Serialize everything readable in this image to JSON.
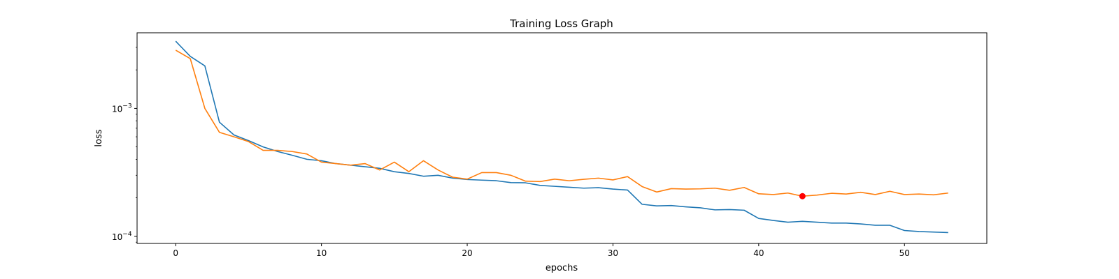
{
  "chart_data": {
    "type": "line",
    "title": "Training Loss Graph",
    "xlabel": "epochs",
    "ylabel": "loss",
    "yscale": "log",
    "xlim": [
      -2.65,
      55.65
    ],
    "ylim": [
      8.8e-05,
      0.0039
    ],
    "xticks": [
      0,
      10,
      20,
      30,
      40,
      50
    ],
    "yticks": [
      {
        "value": 0.001,
        "base": "10",
        "exp": "−3"
      },
      {
        "value": 0.0001,
        "base": "10",
        "exp": "−4"
      }
    ],
    "grid": false,
    "series": [
      {
        "color": "#1f77b4",
        "x": [
          0,
          1,
          2,
          3,
          4,
          5,
          6,
          7,
          8,
          9,
          10,
          11,
          12,
          13,
          14,
          15,
          16,
          17,
          18,
          19,
          20,
          21,
          22,
          23,
          24,
          25,
          26,
          27,
          28,
          29,
          30,
          31,
          32,
          33,
          34,
          35,
          36,
          37,
          38,
          39,
          40,
          41,
          42,
          43,
          44,
          45,
          46,
          47,
          48,
          49,
          50,
          51,
          52,
          53
        ],
        "values": [
          0.00335,
          0.00255,
          0.00215,
          0.00078,
          0.00062,
          0.00056,
          0.0005,
          0.00046,
          0.00043,
          0.0004,
          0.00039,
          0.00037,
          0.00036,
          0.00035,
          0.00034,
          0.00032,
          0.00031,
          0.000295,
          0.0003,
          0.000285,
          0.000278,
          0.000275,
          0.000272,
          0.000263,
          0.000262,
          0.00025,
          0.000246,
          0.000242,
          0.000238,
          0.00024,
          0.000234,
          0.00023,
          0.000178,
          0.000173,
          0.000174,
          0.00017,
          0.000167,
          0.000161,
          0.000162,
          0.00016,
          0.000138,
          0.000133,
          0.000129,
          0.000131,
          0.000129,
          0.000127,
          0.000127,
          0.000125,
          0.000122,
          0.000122,
          0.000111,
          0.000109,
          0.000108,
          0.000107
        ]
      },
      {
        "color": "#ff7f0e",
        "x": [
          0,
          1,
          2,
          3,
          4,
          5,
          6,
          7,
          8,
          9,
          10,
          11,
          12,
          13,
          14,
          15,
          16,
          17,
          18,
          19,
          20,
          21,
          22,
          23,
          24,
          25,
          26,
          27,
          28,
          29,
          30,
          31,
          32,
          33,
          34,
          35,
          36,
          37,
          38,
          39,
          40,
          41,
          42,
          43,
          44,
          45,
          46,
          47,
          48,
          49,
          50,
          51,
          52,
          53
        ],
        "values": [
          0.00285,
          0.00245,
          0.001,
          0.00065,
          0.0006,
          0.00055,
          0.00047,
          0.00047,
          0.00046,
          0.00044,
          0.00038,
          0.00037,
          0.00036,
          0.00037,
          0.00033,
          0.00038,
          0.00032,
          0.00039,
          0.00033,
          0.00029,
          0.00028,
          0.000315,
          0.000315,
          0.0003,
          0.00027,
          0.000268,
          0.00028,
          0.000272,
          0.000279,
          0.000285,
          0.000276,
          0.000293,
          0.000245,
          0.000222,
          0.000236,
          0.000234,
          0.000235,
          0.000238,
          0.000229,
          0.000241,
          0.000215,
          0.000212,
          0.000218,
          0.000206,
          0.00021,
          0.000217,
          0.000214,
          0.000221,
          0.000212,
          0.000225,
          0.000212,
          0.000214,
          0.000211,
          0.000218
        ]
      }
    ],
    "highlight_point": {
      "x": 43,
      "y": 0.000206,
      "color": "#ff0000"
    }
  }
}
